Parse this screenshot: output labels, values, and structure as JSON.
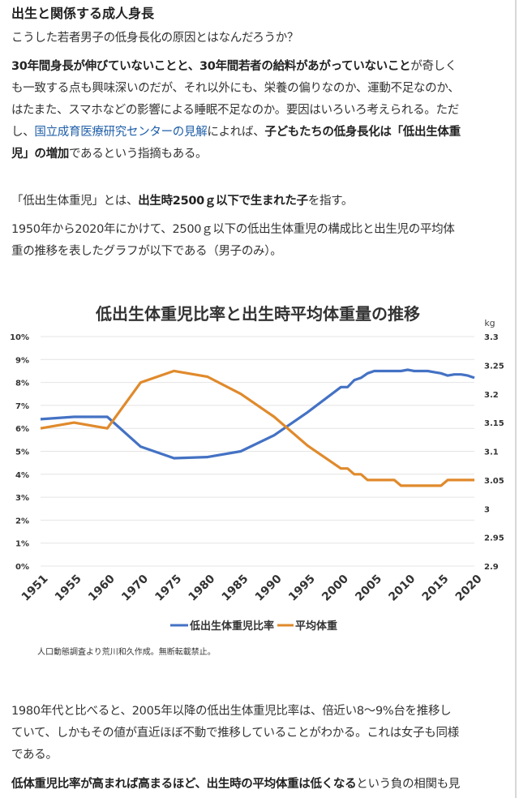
{
  "heading": "出生と関係する成人身長",
  "p1": "こうした若者男子の低身長化の原因とはなんだろうか？",
  "p2": {
    "b1": "30年間身長が伸びていないことと、30年間若者の給料があがっていないこと",
    "t1": "が奇しく",
    "line2": "も一致する点も興味深いのだが、それ以外にも、栄養の偏りなのか、運動不足なのか、",
    "line3": "はたまた、スマホなどの影響による睡眠不足なのか。要因はいろいろ考えられる。ただ",
    "t2": "し、",
    "link": "国立成育医療研究センターの見解",
    "t3": "によれば、",
    "b2": "子どもたちの低身長化は「低出生体重",
    "b3": "児」の増加",
    "t4": "であるという指摘もある。"
  },
  "p3": {
    "t1": "「低出生体重児」とは、",
    "b1": "出生時2500ｇ以下で生まれた子",
    "t2": "を指す。"
  },
  "p4": {
    "line1": "1950年から2020年にかけて、2500ｇ以下の低出生体重児の構成比と出生児の平均体",
    "line2": "重の推移を表したグラフが以下である（男子のみ）。"
  },
  "chart_data": {
    "type": "line",
    "title": "低出生体重児比率と出生時平均体重量の推移",
    "x_tick_labels": [
      "1951",
      "1955",
      "1960",
      "1970",
      "1975",
      "1980",
      "1985",
      "1990",
      "1995",
      "2000",
      "2005",
      "2010",
      "2015",
      "2020"
    ],
    "y_left": {
      "ticks": [
        "0%",
        "1%",
        "2%",
        "3%",
        "4%",
        "5%",
        "6%",
        "7%",
        "8%",
        "9%",
        "10%"
      ],
      "range": [
        0,
        10
      ]
    },
    "y_right": {
      "unit": "kg",
      "ticks": [
        "2.9",
        "2.95",
        "3",
        "3.05",
        "3.1",
        "3.15",
        "3.2",
        "3.25",
        "3.3"
      ],
      "range": [
        2.9,
        3.3
      ]
    },
    "grid": true,
    "legend_position": "bottom",
    "series": [
      {
        "name": "低出生体重児比率",
        "axis": "left",
        "color": "#4472c4",
        "points": [
          [
            1951,
            6.4
          ],
          [
            1955,
            6.5
          ],
          [
            1960,
            6.5
          ],
          [
            1970,
            5.2
          ],
          [
            1975,
            4.7
          ],
          [
            1980,
            4.75
          ],
          [
            1985,
            5.0
          ],
          [
            1990,
            5.7
          ],
          [
            1995,
            6.7
          ],
          [
            2000,
            7.8
          ],
          [
            2001,
            7.8
          ],
          [
            2002,
            8.1
          ],
          [
            2003,
            8.2
          ],
          [
            2004,
            8.4
          ],
          [
            2005,
            8.5
          ],
          [
            2006,
            8.5
          ],
          [
            2007,
            8.5
          ],
          [
            2008,
            8.5
          ],
          [
            2009,
            8.5
          ],
          [
            2010,
            8.55
          ],
          [
            2011,
            8.5
          ],
          [
            2012,
            8.5
          ],
          [
            2013,
            8.5
          ],
          [
            2014,
            8.45
          ],
          [
            2015,
            8.4
          ],
          [
            2016,
            8.3
          ],
          [
            2017,
            8.35
          ],
          [
            2018,
            8.35
          ],
          [
            2019,
            8.3
          ],
          [
            2020,
            8.2
          ]
        ]
      },
      {
        "name": "平均体重",
        "axis": "right",
        "color": "#e08a2c",
        "points": [
          [
            1951,
            3.14
          ],
          [
            1955,
            3.15
          ],
          [
            1960,
            3.14
          ],
          [
            1970,
            3.22
          ],
          [
            1975,
            3.24
          ],
          [
            1980,
            3.23
          ],
          [
            1985,
            3.2
          ],
          [
            1990,
            3.16
          ],
          [
            1995,
            3.11
          ],
          [
            2000,
            3.07
          ],
          [
            2001,
            3.07
          ],
          [
            2002,
            3.06
          ],
          [
            2003,
            3.06
          ],
          [
            2004,
            3.05
          ],
          [
            2005,
            3.05
          ],
          [
            2006,
            3.05
          ],
          [
            2007,
            3.05
          ],
          [
            2008,
            3.05
          ],
          [
            2009,
            3.04
          ],
          [
            2010,
            3.04
          ],
          [
            2011,
            3.04
          ],
          [
            2012,
            3.04
          ],
          [
            2013,
            3.04
          ],
          [
            2014,
            3.04
          ],
          [
            2015,
            3.04
          ],
          [
            2016,
            3.05
          ],
          [
            2017,
            3.05
          ],
          [
            2018,
            3.05
          ],
          [
            2019,
            3.05
          ],
          [
            2020,
            3.05
          ]
        ]
      }
    ],
    "caption": "人口動態調査より荒川和久作成。無断転載禁止。"
  },
  "p5": {
    "line1": "1980年代と比べると、2005年以降の低出生体重児比率は、倍近い8〜9%台を推移し",
    "line2": "ていて、しかもその値が直近ほぼ不動で推移していることがわかる。これは女子も同様",
    "line3": "である。"
  },
  "p6": {
    "b1": "低体重児比率が高まれば高まるほど、出生時の平均体重は低くなる",
    "t1": "という負の相関も見"
  }
}
